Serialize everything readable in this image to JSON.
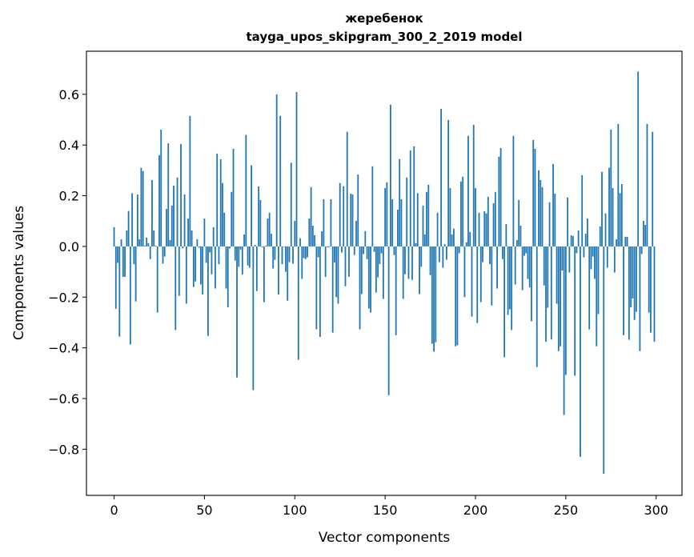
{
  "chart_data": {
    "type": "bar",
    "title": "жеребенок",
    "subtitle": "tayga_upos_skipgram_300_2_2019 model",
    "xlabel": "Vector components",
    "ylabel": "Components values",
    "xlim": [
      -15.3,
      314.3
    ],
    "ylim": [
      -0.982,
      0.77
    ],
    "xticks": [
      0,
      50,
      100,
      150,
      200,
      250,
      300
    ],
    "xtick_labels": [
      "0",
      "50",
      "100",
      "150",
      "200",
      "250",
      "300"
    ],
    "yticks": [
      0.6,
      0.4,
      0.2,
      0.0,
      -0.2,
      -0.4,
      -0.6,
      -0.8
    ],
    "ytick_labels": [
      "0.6",
      "0.4",
      "0.2",
      "0.0",
      "−0.2",
      "−0.4",
      "−0.6",
      "−0.8"
    ],
    "grid": false,
    "bar_color": "#1f77b4",
    "bar_width": 0.8,
    "values": [
      0.076,
      -0.246,
      -0.065,
      -0.356,
      0.028,
      -0.12,
      -0.12,
      0.063,
      0.14,
      -0.387,
      0.21,
      -0.07,
      -0.217,
      0.205,
      0.028,
      0.31,
      0.297,
      0.003,
      0.035,
      0.013,
      -0.05,
      0.262,
      0.063,
      0.003,
      -0.261,
      0.36,
      0.461,
      -0.068,
      -0.04,
      0.148,
      0.407,
      0.025,
      0.161,
      0.24,
      -0.33,
      0.272,
      -0.195,
      0.404,
      -0.008,
      0.205,
      -0.226,
      0.11,
      0.515,
      0.063,
      -0.16,
      -0.138,
      0.028,
      -0.005,
      -0.15,
      -0.19,
      0.11,
      -0.065,
      -0.353,
      -0.024,
      -0.11,
      0.076,
      -0.166,
      0.366,
      -0.07,
      0.344,
      0.25,
      0.133,
      -0.166,
      -0.24,
      -0.008,
      0.215,
      0.385,
      -0.056,
      -0.517,
      -0.08,
      -0.012,
      -0.11,
      0.047,
      0.44,
      -0.075,
      -0.084,
      0.32,
      -0.567,
      0.006,
      -0.176,
      0.237,
      0.183,
      -0.003,
      -0.22,
      0.003,
      0.11,
      0.133,
      0.05,
      -0.087,
      -0.053,
      0.6,
      -0.19,
      0.515,
      -0.07,
      -0.002,
      -0.1,
      -0.214,
      -0.062,
      0.33,
      -0.068,
      0.101,
      0.609,
      -0.447,
      0.032,
      -0.128,
      -0.046,
      -0.05,
      -0.043,
      0.11,
      0.234,
      0.082,
      0.044,
      -0.327,
      -0.043,
      -0.357,
      0.06,
      0.186,
      -0.12,
      -0.003,
      -0.003,
      0.186,
      -0.34,
      -0.063,
      -0.2,
      -0.226,
      0.25,
      -0.024,
      0.237,
      -0.157,
      0.452,
      -0.12,
      0.208,
      0.205,
      -0.034,
      0.101,
      0.284,
      -0.327,
      -0.188,
      -0.03,
      0.06,
      -0.05,
      -0.245,
      -0.261,
      0.316,
      -0.021,
      -0.182,
      -0.122,
      -0.07,
      -0.027,
      -0.207,
      0.23,
      0.253,
      -0.587,
      0.559,
      0.186,
      -0.034,
      -0.35,
      0.145,
      0.344,
      0.186,
      -0.207,
      -0.11,
      0.272,
      -0.128,
      0.379,
      -0.132,
      0.395,
      0.013,
      0.21,
      -0.188,
      -0.08,
      0.161,
      0.047,
      0.215,
      0.243,
      -0.113,
      -0.384,
      -0.415,
      -0.378,
      0.133,
      -0.062,
      0.543,
      -0.084,
      0.009,
      -0.053,
      0.499,
      0.23,
      0.047,
      0.07,
      -0.394,
      -0.39,
      -0.027,
      0.256,
      0.275,
      -0.2,
      0.016,
      0.436,
      0.057,
      -0.277,
      0.48,
      0.23,
      -0.302,
      0.133,
      -0.22,
      -0.062,
      0.139,
      0.13,
      0.196,
      -0.07,
      -0.233,
      0.17,
      0.215,
      -0.166,
      0.354,
      0.388,
      -0.05,
      -0.437,
      0.088,
      -0.27,
      -0.248,
      -0.33,
      0.436,
      -0.15,
      0.025,
      0.183,
      0.082,
      -0.173,
      -0.037,
      -0.027,
      -0.128,
      -0.162,
      -0.295,
      0.42,
      0.385,
      -0.476,
      0.3,
      0.262,
      0.234,
      -0.154,
      -0.376,
      -0.242,
      0.174,
      -0.367,
      0.325,
      0.208,
      -0.226,
      -0.413,
      -0.394,
      -0.095,
      -0.665,
      -0.507,
      0.193,
      -0.103,
      0.044,
      0.041,
      -0.51,
      -0.027,
      0.063,
      -0.83,
      0.281,
      -0.043,
      0.05,
      0.11,
      -0.327,
      -0.09,
      -0.04,
      -0.128,
      -0.394,
      -0.267,
      0.079,
      0.294,
      -0.897,
      0.13,
      -0.084,
      0.31,
      0.461,
      0.23,
      -0.103,
      0.028,
      0.483,
      0.21,
      0.246,
      -0.35,
      0.038,
      0.038,
      -0.368,
      -0.24,
      -0.205,
      -0.29,
      -0.258,
      0.69,
      -0.413,
      -0.03,
      0.101,
      0.085,
      0.483,
      -0.261,
      -0.34,
      0.452,
      -0.376
    ]
  }
}
